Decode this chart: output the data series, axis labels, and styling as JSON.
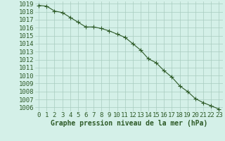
{
  "x": [
    0,
    1,
    2,
    3,
    4,
    5,
    6,
    7,
    8,
    9,
    10,
    11,
    12,
    13,
    14,
    15,
    16,
    17,
    18,
    19,
    20,
    21,
    22,
    23
  ],
  "y": [
    1018.8,
    1018.7,
    1018.1,
    1017.9,
    1017.3,
    1016.7,
    1016.1,
    1016.1,
    1015.9,
    1015.6,
    1015.2,
    1014.8,
    1014.0,
    1013.2,
    1012.1,
    1011.6,
    1010.6,
    1009.8,
    1008.7,
    1008.0,
    1007.1,
    1006.6,
    1006.2,
    1005.8
  ],
  "line_color": "#2d5a27",
  "marker": "+",
  "marker_color": "#2d5a27",
  "bg_color": "#d4f0e8",
  "plot_bg_color": "#d4f0e8",
  "grid_color": "#a8ccbf",
  "xlabel": "Graphe pression niveau de la mer (hPa)",
  "xlabel_color": "#2d5a27",
  "tick_color": "#2d5a27",
  "ylim": [
    1005.5,
    1019.3
  ],
  "xlim": [
    -0.5,
    23.5
  ],
  "yticks": [
    1006,
    1007,
    1008,
    1009,
    1010,
    1011,
    1012,
    1013,
    1014,
    1015,
    1016,
    1017,
    1018,
    1019
  ],
  "xticks": [
    0,
    1,
    2,
    3,
    4,
    5,
    6,
    7,
    8,
    9,
    10,
    11,
    12,
    13,
    14,
    15,
    16,
    17,
    18,
    19,
    20,
    21,
    22,
    23
  ],
  "line_width": 0.8,
  "marker_size": 4,
  "font_size": 6.5
}
